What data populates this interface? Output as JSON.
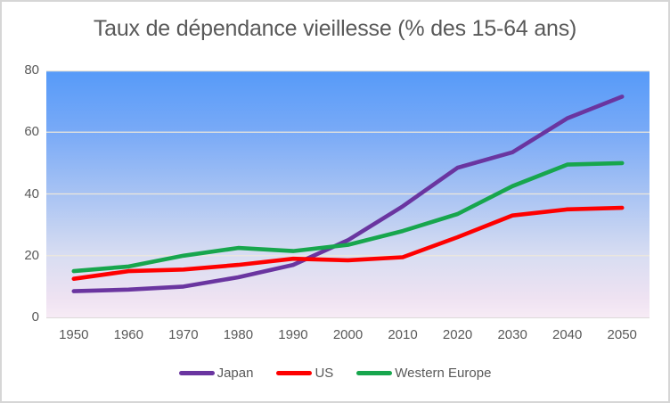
{
  "title": "Taux de dépendance vieillesse (% des 15-64 ans)",
  "colors": {
    "text": "#595959",
    "gridline": "#ece7db",
    "axis_line": "#dcd9d9",
    "frame_border": "#d6d6d6",
    "plot_background_stops": [
      "#569af8",
      "#79aaf7",
      "#a8c3f3",
      "#d8ddf2",
      "#eee2f2",
      "#f7ebf5"
    ]
  },
  "chart_data": {
    "type": "line",
    "title": "Taux de dépendance vieillesse (% des 15-64 ans)",
    "x": [
      1950,
      1960,
      1970,
      1980,
      1990,
      2000,
      2010,
      2020,
      2030,
      2040,
      2050
    ],
    "series": [
      {
        "name": "Japan",
        "color": "#6a35a0",
        "values": [
          8.5,
          9,
          10,
          13,
          17,
          25,
          36,
          48.5,
          53.5,
          64.5,
          71.5
        ]
      },
      {
        "name": "US",
        "color": "#fe0000",
        "values": [
          12.5,
          15,
          15.5,
          17,
          19,
          18.5,
          19.5,
          26,
          33,
          35,
          35.5
        ]
      },
      {
        "name": "Western Europe",
        "color": "#17a64d",
        "values": [
          15,
          16.5,
          20,
          22.5,
          21.5,
          23.5,
          28,
          33.5,
          42.5,
          49.5,
          50
        ]
      }
    ],
    "xlabel": "",
    "ylabel": "",
    "ylim": [
      0,
      80
    ],
    "yticks": [
      0,
      20,
      40,
      60,
      80
    ],
    "grid": true,
    "legend_position": "bottom"
  }
}
